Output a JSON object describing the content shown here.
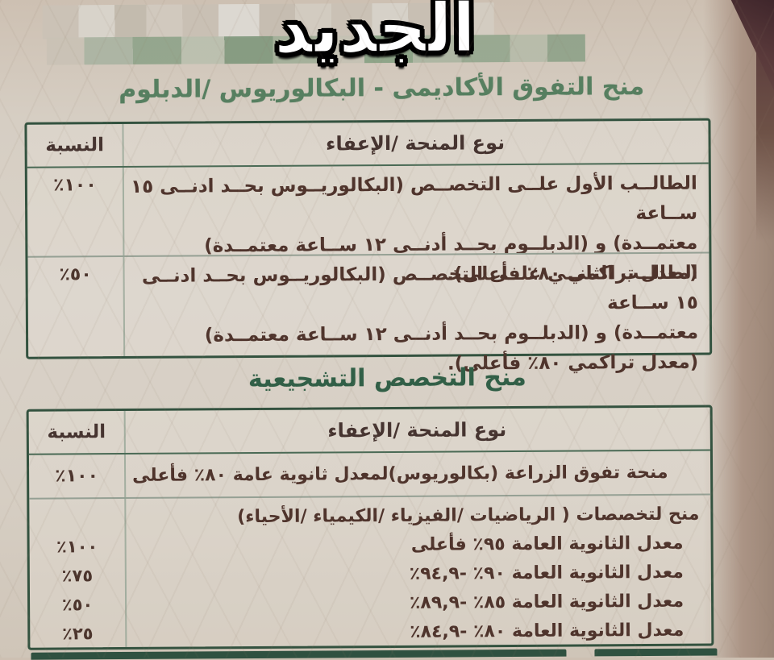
{
  "banner": {
    "new_label": "الجديد"
  },
  "section1": {
    "title": "منح التفوق الأكاديمى - البكالوريوس /الدبلوم",
    "table": {
      "type_header": "نوع المنحة /الإعفاء",
      "pct_header": "النسبة",
      "rows": [
        {
          "pct": "١٠٠٪",
          "text": "الطالــب الأول علــى التخصــص (البكالوريــوس بحــد ادنــى ١٥ ســاعة\nمعتمــدة) و (الدبلــوم بحــد أدنــى ١٢ ســاعة معتمــدة)\n(معدل تراكمي ٨٠٪ فأعلى)."
        },
        {
          "pct": "٥٠٪",
          "text": "الطالــب الثانــي علــى التخصــص (البكالوريــوس بحــد ادنــى ١٥ ســاعة\nمعتمــدة) و (الدبلــوم بحــد أدنــى ١٢ ســاعة معتمــدة)\n(معدل تراكمي ٨٠٪ فأعلى)."
        }
      ]
    }
  },
  "section2": {
    "title": "منح التخصص التشجيعية",
    "table": {
      "type_header": "نوع المنحة /الإعفاء",
      "pct_header": "النسبة",
      "rows": [
        {
          "pct": "١٠٠٪",
          "text": "منحة تفوق الزراعة (بكالوريوس)لمعدل ثانوية عامة ٨٠٪ فأعلى"
        },
        {
          "pct": "",
          "text": "منح لتخصصات ( الرياضيات /الفيزياء /الكيمياء /الأحياء)"
        },
        {
          "pct": "١٠٠٪",
          "text": "معدل الثانوية العامة ٩٥٪ فأعلى"
        },
        {
          "pct": "٧٥٪",
          "text": "معدل الثانوية العامة ٩٠٪ -٩٤,٩٪"
        },
        {
          "pct": "٥٠٪",
          "text": "معدل الثانوية العامة ٨٥٪ -٨٩,٩٪"
        },
        {
          "pct": "٢٥٪",
          "text": "معدل الثانوية العامة ٨٠٪ -٨٤,٩٪"
        }
      ]
    }
  },
  "colors": {
    "table_border_green": "#33523f",
    "title_green": "#567f60",
    "section2_title_green": "#315f47",
    "body_text_brown": "#4f342c",
    "paper_beige": "#d6cec3"
  }
}
